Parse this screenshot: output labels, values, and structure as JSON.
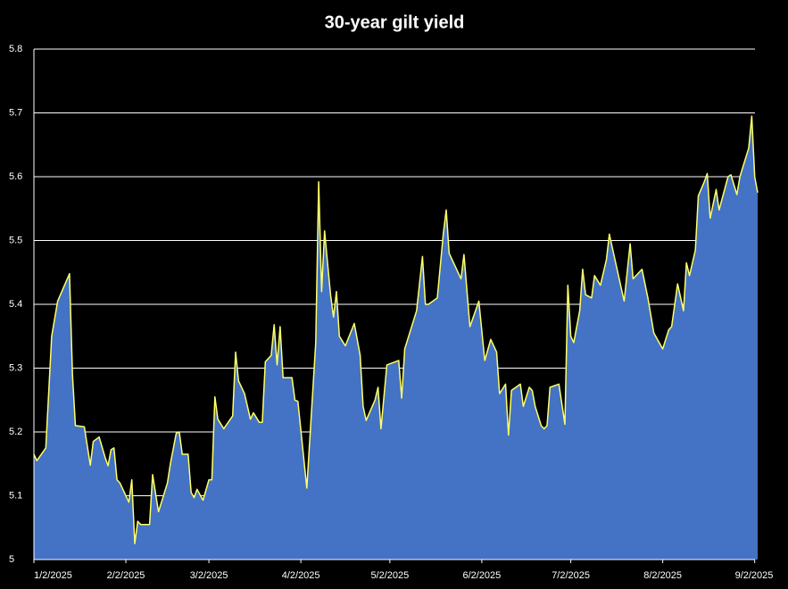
{
  "chart_data": {
    "type": "area",
    "title": "30-year gilt yield",
    "x": [
      "2025-01-02",
      "2025-01-03",
      "2025-01-06",
      "2025-01-08",
      "2025-01-10",
      "2025-01-14",
      "2025-01-15",
      "2025-01-16",
      "2025-01-19",
      "2025-01-21",
      "2025-01-22",
      "2025-01-24",
      "2025-01-26",
      "2025-01-27",
      "2025-01-28",
      "2025-01-29",
      "2025-01-30",
      "2025-01-31",
      "2025-02-03",
      "2025-02-04",
      "2025-02-05",
      "2025-02-06",
      "2025-02-07",
      "2025-02-10",
      "2025-02-11",
      "2025-02-13",
      "2025-02-16",
      "2025-02-17",
      "2025-02-19",
      "2025-02-20",
      "2025-02-21",
      "2025-02-23",
      "2025-02-24",
      "2025-02-25",
      "2025-02-26",
      "2025-02-28",
      "2025-03-02",
      "2025-03-03",
      "2025-03-04",
      "2025-03-05",
      "2025-03-07",
      "2025-03-10",
      "2025-03-11",
      "2025-03-12",
      "2025-03-14",
      "2025-03-16",
      "2025-03-17",
      "2025-03-19",
      "2025-03-20",
      "2025-03-21",
      "2025-03-23",
      "2025-03-24",
      "2025-03-25",
      "2025-03-26",
      "2025-03-27",
      "2025-03-30",
      "2025-03-31",
      "2025-04-01",
      "2025-04-04",
      "2025-04-07",
      "2025-04-08",
      "2025-04-09",
      "2025-04-10",
      "2025-04-12",
      "2025-04-13",
      "2025-04-14",
      "2025-04-15",
      "2025-04-17",
      "2025-04-20",
      "2025-04-22",
      "2025-04-23",
      "2025-04-24",
      "2025-04-27",
      "2025-04-28",
      "2025-04-29",
      "2025-05-01",
      "2025-05-05",
      "2025-05-06",
      "2025-05-07",
      "2025-05-11",
      "2025-05-13",
      "2025-05-14",
      "2025-05-15",
      "2025-05-18",
      "2025-05-20",
      "2025-05-21",
      "2025-05-22",
      "2025-05-26",
      "2025-05-27",
      "2025-05-29",
      "2025-06-01",
      "2025-06-03",
      "2025-06-05",
      "2025-06-07",
      "2025-06-08",
      "2025-06-10",
      "2025-06-11",
      "2025-06-12",
      "2025-06-15",
      "2025-06-16",
      "2025-06-18",
      "2025-06-19",
      "2025-06-20",
      "2025-06-22",
      "2025-06-23",
      "2025-06-24",
      "2025-06-25",
      "2025-06-28",
      "2025-06-30",
      "2025-07-01",
      "2025-07-02",
      "2025-07-03",
      "2025-07-05",
      "2025-07-06",
      "2025-07-07",
      "2025-07-09",
      "2025-07-10",
      "2025-07-12",
      "2025-07-14",
      "2025-07-15",
      "2025-07-20",
      "2025-07-22",
      "2025-07-23",
      "2025-07-26",
      "2025-07-28",
      "2025-07-30",
      "2025-08-02",
      "2025-08-04",
      "2025-08-05",
      "2025-08-07",
      "2025-08-09",
      "2025-08-10",
      "2025-08-11",
      "2025-08-13",
      "2025-08-14",
      "2025-08-16",
      "2025-08-17",
      "2025-08-18",
      "2025-08-20",
      "2025-08-21",
      "2025-08-24",
      "2025-08-25",
      "2025-08-27",
      "2025-08-28",
      "2025-08-31",
      "2025-09-01",
      "2025-09-02",
      "2025-09-03"
    ],
    "values": [
      5.165,
      5.155,
      5.175,
      5.35,
      5.405,
      5.448,
      5.29,
      5.21,
      5.208,
      5.148,
      5.185,
      5.192,
      5.16,
      5.147,
      5.172,
      5.175,
      5.125,
      5.12,
      5.09,
      5.125,
      5.025,
      5.06,
      5.055,
      5.055,
      5.133,
      5.075,
      5.12,
      5.15,
      5.198,
      5.2,
      5.165,
      5.165,
      5.105,
      5.097,
      5.11,
      5.093,
      5.125,
      5.125,
      5.255,
      5.22,
      5.205,
      5.225,
      5.325,
      5.28,
      5.26,
      5.22,
      5.23,
      5.215,
      5.215,
      5.31,
      5.32,
      5.368,
      5.305,
      5.365,
      5.285,
      5.285,
      5.25,
      5.248,
      5.112,
      5.34,
      5.592,
      5.42,
      5.515,
      5.415,
      5.38,
      5.42,
      5.35,
      5.335,
      5.37,
      5.32,
      5.24,
      5.218,
      5.25,
      5.27,
      5.205,
      5.305,
      5.312,
      5.253,
      5.33,
      5.39,
      5.475,
      5.4,
      5.4,
      5.41,
      5.51,
      5.548,
      5.48,
      5.44,
      5.478,
      5.365,
      5.405,
      5.312,
      5.345,
      5.325,
      5.26,
      5.275,
      5.195,
      5.265,
      5.275,
      5.24,
      5.27,
      5.265,
      5.24,
      5.21,
      5.205,
      5.21,
      5.27,
      5.275,
      5.212,
      5.43,
      5.35,
      5.34,
      5.39,
      5.455,
      5.415,
      5.41,
      5.445,
      5.43,
      5.47,
      5.51,
      5.405,
      5.495,
      5.44,
      5.455,
      5.41,
      5.355,
      5.33,
      5.36,
      5.365,
      5.432,
      5.39,
      5.465,
      5.445,
      5.485,
      5.57,
      5.592,
      5.605,
      5.535,
      5.58,
      5.548,
      5.6,
      5.603,
      5.572,
      5.6,
      5.645,
      5.695,
      5.6,
      5.575
    ],
    "color": "#4472c4",
    "line_color": "#ffff66",
    "xlim": [
      "2025-01-02",
      "2025-09-03"
    ],
    "xticks": [
      {
        "value": "2025-01-02",
        "label": "1/2/2025"
      },
      {
        "value": "2025-02-02",
        "label": "2/2/2025"
      },
      {
        "value": "2025-03-02",
        "label": "3/2/2025"
      },
      {
        "value": "2025-04-02",
        "label": "4/2/2025"
      },
      {
        "value": "2025-05-02",
        "label": "5/2/2025"
      },
      {
        "value": "2025-06-02",
        "label": "6/2/2025"
      },
      {
        "value": "2025-07-02",
        "label": "7/2/2025"
      },
      {
        "value": "2025-08-02",
        "label": "8/2/2025"
      },
      {
        "value": "2025-09-02",
        "label": "9/2/2025"
      }
    ],
    "ylim": [
      5,
      5.8
    ],
    "yticks": [
      5,
      5.1,
      5.2,
      5.3,
      5.4,
      5.5,
      5.6,
      5.7,
      5.8
    ],
    "grid": true
  }
}
